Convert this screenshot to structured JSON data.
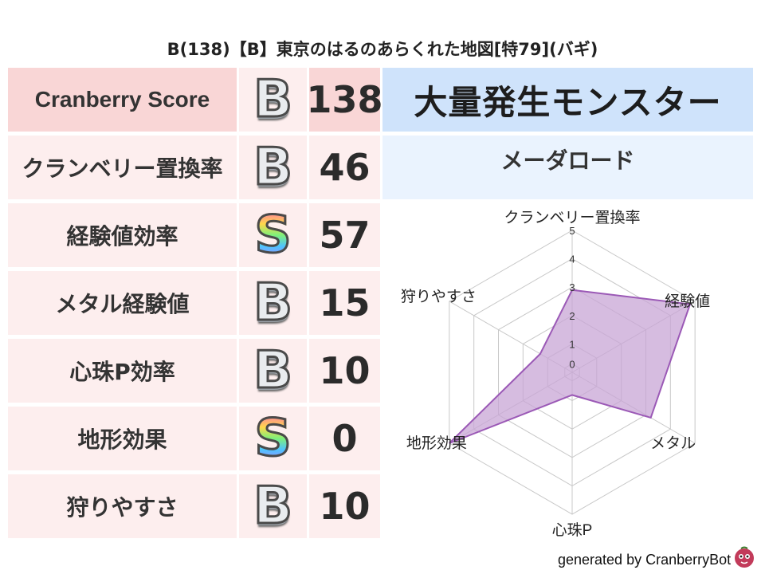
{
  "title": "B(138)【B】東京のはるのあらくれた地図[特79](バギ)",
  "total": {
    "label": "Cranberry Score",
    "grade": "B",
    "score": "138"
  },
  "rows": [
    {
      "label": "クランベリー置換率",
      "grade": "B",
      "score": "46"
    },
    {
      "label": "経験値効率",
      "grade": "S",
      "score": "57"
    },
    {
      "label": "メタル経験値",
      "grade": "B",
      "score": "15"
    },
    {
      "label": "心珠P効率",
      "grade": "B",
      "score": "10"
    },
    {
      "label": "地形効果",
      "grade": "S",
      "score": "0"
    },
    {
      "label": "狩りやすさ",
      "grade": "B",
      "score": "10"
    }
  ],
  "monster": "大量発生モンスター",
  "map": "メーダロード",
  "footer": "generated by CranberryBot",
  "colors": {
    "label_total_bg": "#f9d6d6",
    "label_bg": "#fdeeee",
    "monster_bg": "#cfe3fb",
    "map_bg": "#eaf3fe",
    "radar_fill": "#c8a6d6",
    "radar_stroke": "#9b59b6"
  },
  "chart_data": {
    "type": "radar",
    "axes": [
      "クランベリー置換率",
      "経験値",
      "メタル",
      "心珠P",
      "地形効果",
      "狩りやすさ"
    ],
    "values": [
      2.9,
      4.8,
      3.2,
      0.8,
      5.0,
      1.3
    ],
    "range": [
      0,
      5
    ],
    "ticks": [
      "0",
      "1",
      "2",
      "3",
      "4",
      "5"
    ]
  }
}
